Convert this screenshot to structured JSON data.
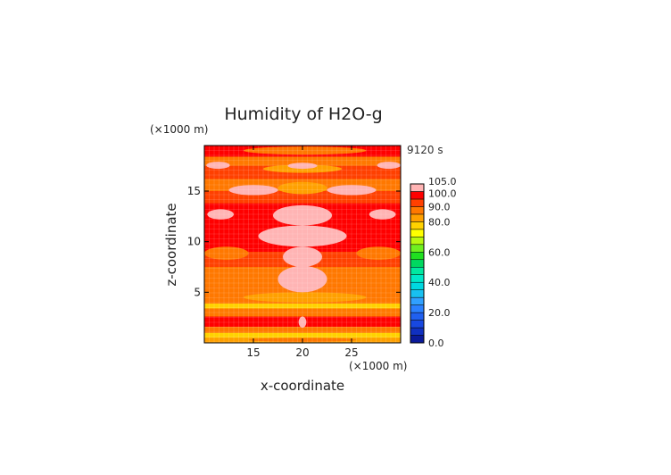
{
  "chart_data": {
    "type": "heatmap",
    "title": "Humidity of H2O-g",
    "xlabel": "x-coordinate",
    "ylabel": "z-coordinate",
    "x_unit": "(×1000 m)",
    "y_unit": "(×1000 m)",
    "time_label": "9120 s",
    "xlim": [
      10,
      30
    ],
    "ylim": [
      0,
      19.5
    ],
    "xticks": [
      15,
      20,
      25
    ],
    "yticks": [
      5,
      10,
      15
    ],
    "colorbar": {
      "levels": [
        0,
        5,
        10,
        15,
        20,
        25,
        30,
        35,
        40,
        45,
        50,
        55,
        60,
        65,
        70,
        75,
        80,
        85,
        90,
        95,
        100,
        105
      ],
      "colors": [
        "#0a1a9a",
        "#1030c0",
        "#1848e0",
        "#2060f0",
        "#2a80ff",
        "#30a0ff",
        "#18c0f0",
        "#00d8e0",
        "#00e8c8",
        "#00e8a0",
        "#00d860",
        "#20e020",
        "#70f020",
        "#b8f810",
        "#ffff00",
        "#ffd200",
        "#ffa000",
        "#ff7800",
        "#ff4000",
        "#ff0000",
        "#ffb4b4"
      ],
      "tick_labels": [
        "0.0",
        "20.0",
        "40.0",
        "60.0",
        "80.0",
        "90.0",
        "100.0",
        "105.0"
      ]
    },
    "z_bands": [
      {
        "z": [
          0.0,
          0.5
        ],
        "value": 82
      },
      {
        "z": [
          0.5,
          1.0
        ],
        "value": 78
      },
      {
        "z": [
          1.0,
          1.6
        ],
        "value": 86
      },
      {
        "z": [
          1.6,
          2.6
        ],
        "value": 95
      },
      {
        "z": [
          2.6,
          3.4
        ],
        "value": 86
      },
      {
        "z": [
          3.4,
          3.9
        ],
        "value": 78
      },
      {
        "z": [
          3.9,
          5.5
        ],
        "value": 87
      },
      {
        "z": [
          5.5,
          7.5
        ],
        "value": 86
      },
      {
        "z": [
          7.5,
          9.0
        ],
        "value": 90
      },
      {
        "z": [
          9.0,
          12.0
        ],
        "value": 96
      },
      {
        "z": [
          12.0,
          13.8
        ],
        "value": 97
      },
      {
        "z": [
          13.8,
          15.0
        ],
        "value": 90
      },
      {
        "z": [
          15.0,
          16.2
        ],
        "value": 86
      },
      {
        "z": [
          16.2,
          17.5
        ],
        "value": 93
      },
      {
        "z": [
          17.5,
          18.4
        ],
        "value": 86
      },
      {
        "z": [
          18.4,
          19.5
        ],
        "value": 95
      }
    ],
    "patches": [
      {
        "x": [
          14.0,
          26.5
        ],
        "z": [
          18.6,
          19.4
        ],
        "value": 88
      },
      {
        "x": [
          16.0,
          24.0
        ],
        "z": [
          16.8,
          17.6
        ],
        "value": 84
      },
      {
        "x": [
          18.5,
          21.5
        ],
        "z": [
          17.2,
          17.8
        ],
        "value": 102
      },
      {
        "x": [
          10.2,
          12.6
        ],
        "z": [
          17.2,
          17.9
        ],
        "value": 102
      },
      {
        "x": [
          27.6,
          30.0
        ],
        "z": [
          17.2,
          17.9
        ],
        "value": 102
      },
      {
        "x": [
          12.5,
          17.5
        ],
        "z": [
          14.6,
          15.6
        ],
        "value": 102
      },
      {
        "x": [
          22.5,
          27.5
        ],
        "z": [
          14.6,
          15.6
        ],
        "value": 102
      },
      {
        "x": [
          17.5,
          22.5
        ],
        "z": [
          14.7,
          15.9
        ],
        "value": 84
      },
      {
        "x": [
          10.3,
          13.0
        ],
        "z": [
          12.2,
          13.2
        ],
        "value": 102
      },
      {
        "x": [
          26.8,
          29.5
        ],
        "z": [
          12.2,
          13.2
        ],
        "value": 102
      },
      {
        "x": [
          17.0,
          23.0
        ],
        "z": [
          11.6,
          13.6
        ],
        "value": 102
      },
      {
        "x": [
          15.5,
          24.5
        ],
        "z": [
          9.5,
          11.6
        ],
        "value": 102
      },
      {
        "x": [
          10.0,
          14.5
        ],
        "z": [
          8.2,
          9.5
        ],
        "value": 88
      },
      {
        "x": [
          25.5,
          30.0
        ],
        "z": [
          8.2,
          9.5
        ],
        "value": 88
      },
      {
        "x": [
          18.0,
          22.0
        ],
        "z": [
          7.5,
          9.5
        ],
        "value": 102
      },
      {
        "x": [
          17.5,
          22.5
        ],
        "z": [
          5.0,
          7.6
        ],
        "value": 102
      },
      {
        "x": [
          14.0,
          26.5
        ],
        "z": [
          4.0,
          5.0
        ],
        "value": 82
      },
      {
        "x": [
          17.5,
          23.0
        ],
        "z": [
          1.7,
          2.4
        ],
        "value": 97
      },
      {
        "x": [
          19.6,
          20.4
        ],
        "z": [
          1.5,
          2.6
        ],
        "value": 102
      },
      {
        "x": [
          14.5,
          25.5
        ],
        "z": [
          0.1,
          0.5
        ],
        "value": 86
      }
    ]
  }
}
